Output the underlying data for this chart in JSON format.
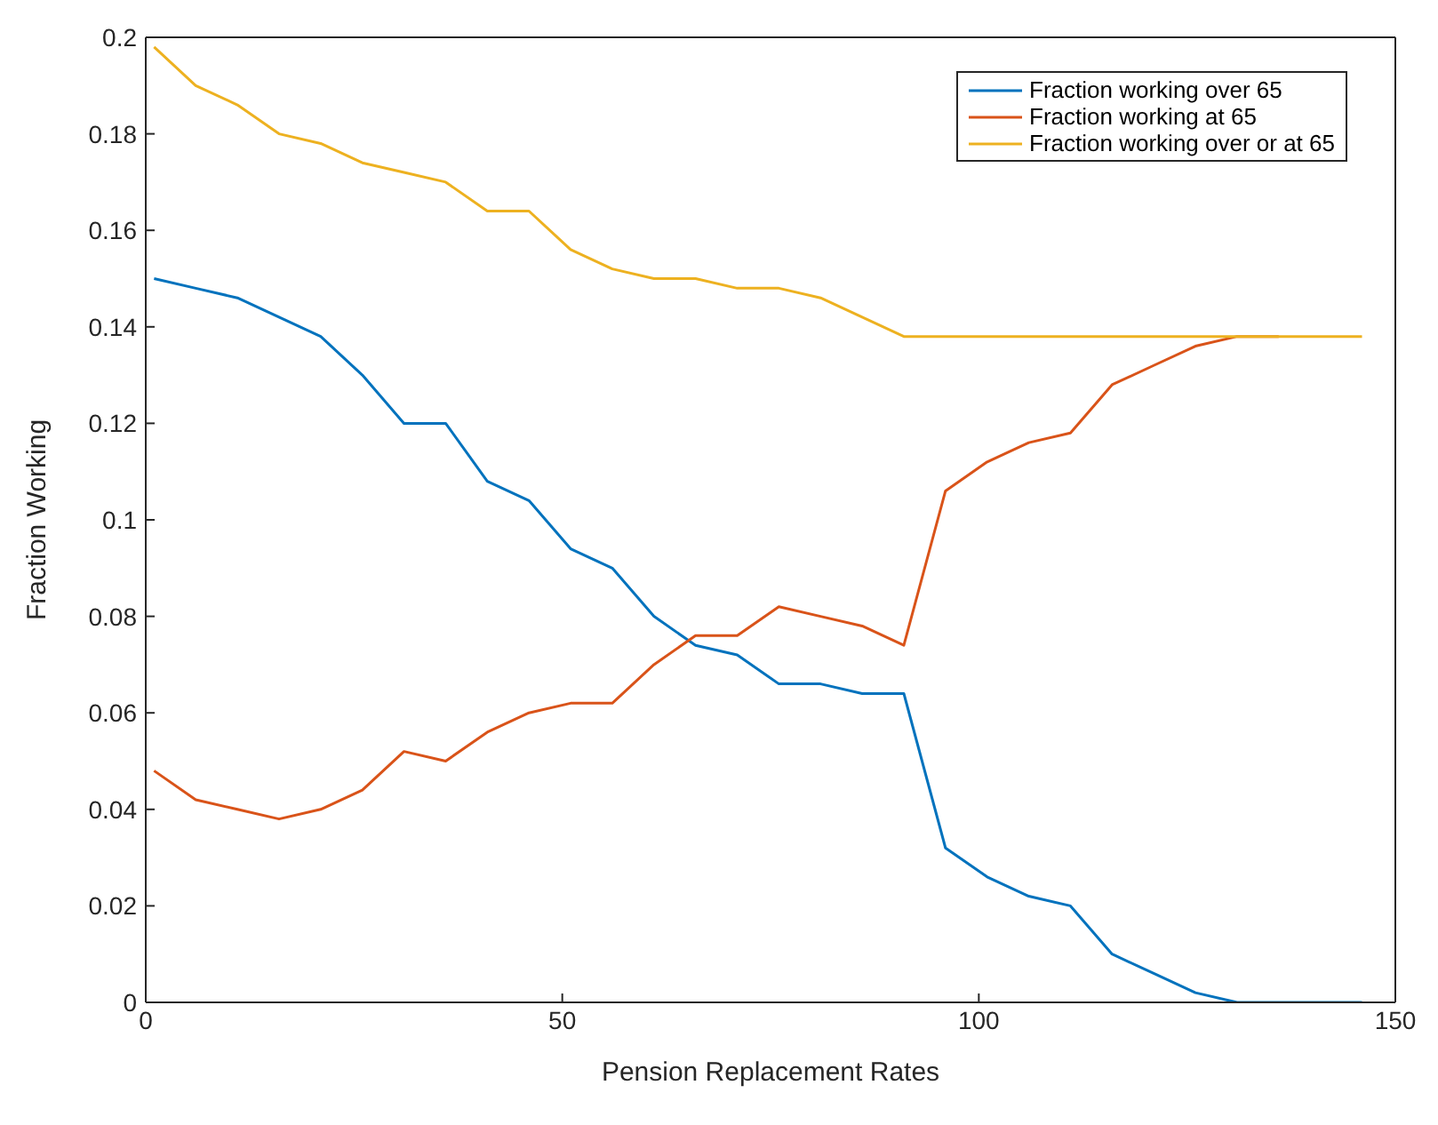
{
  "chart_data": {
    "type": "line",
    "xlabel": "Pension Replacement Rates",
    "ylabel": "Fraction Working",
    "x": [
      1,
      6,
      11,
      16,
      21,
      26,
      31,
      36,
      41,
      46,
      51,
      56,
      61,
      66,
      71,
      76,
      81,
      86,
      91,
      96,
      101,
      106,
      111,
      116,
      121,
      126,
      131,
      136,
      141,
      146
    ],
    "xlim": [
      0,
      150
    ],
    "xticks": [
      0,
      50,
      100,
      150
    ],
    "ylim": [
      0,
      0.2
    ],
    "yticks": [
      0,
      0.02,
      0.04,
      0.06,
      0.08,
      0.1,
      0.12,
      0.14,
      0.16,
      0.18,
      0.2
    ],
    "grid": false,
    "legend": "top right",
    "marker": "none",
    "line_style": "solid",
    "series": [
      {
        "name": "Fraction working over 65",
        "color": "#0072bd",
        "values": [
          0.15,
          0.148,
          0.146,
          0.142,
          0.138,
          0.13,
          0.12,
          0.12,
          0.108,
          0.104,
          0.094,
          0.09,
          0.08,
          0.074,
          0.072,
          0.066,
          0.066,
          0.064,
          0.064,
          0.032,
          0.026,
          0.022,
          0.02,
          0.01,
          0.006,
          0.002,
          0,
          0,
          0,
          0
        ]
      },
      {
        "name": "Fraction working at 65",
        "color": "#d95319",
        "values": [
          0.048,
          0.042,
          0.04,
          0.038,
          0.04,
          0.044,
          0.052,
          0.05,
          0.056,
          0.06,
          0.062,
          0.062,
          0.07,
          0.076,
          0.076,
          0.082,
          0.08,
          0.078,
          0.074,
          0.106,
          0.112,
          0.116,
          0.118,
          0.128,
          0.132,
          0.136,
          0.138,
          0.138,
          null,
          null
        ]
      },
      {
        "name": "Fraction working over or at 65",
        "color": "#edb120",
        "values": [
          0.198,
          0.19,
          0.186,
          0.18,
          0.178,
          0.174,
          0.172,
          0.17,
          0.164,
          0.164,
          0.156,
          0.152,
          0.15,
          0.15,
          0.148,
          0.148,
          0.146,
          0.142,
          0.138,
          0.138,
          0.138,
          0.138,
          0.138,
          0.138,
          0.138,
          0.138,
          0.138,
          0.138,
          0.138,
          0.138
        ]
      }
    ]
  }
}
